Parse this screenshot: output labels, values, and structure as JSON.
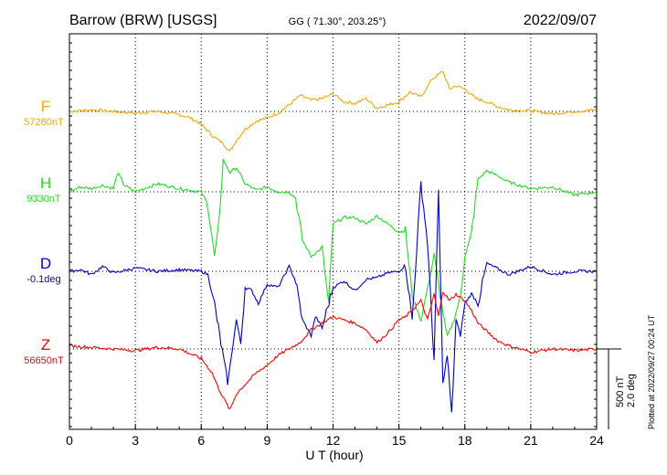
{
  "header": {
    "station": "Barrow (BRW)  [USGS]",
    "coords": "GG ( 71.30°, 203.25°)",
    "date": "2022/09/07"
  },
  "footer": {
    "plotted_note": "Plotted at 2022/09/27 00:24 UT"
  },
  "scale_bar": {
    "label_nt": "500 nT",
    "label_deg": "2.0 deg"
  },
  "chart_data": {
    "type": "line",
    "xlabel": "U T (hour)",
    "xlim": [
      0,
      24
    ],
    "xticks": [
      0,
      3,
      6,
      9,
      12,
      15,
      18,
      21,
      24
    ],
    "xtick_labels": [
      "0",
      "3",
      "6",
      "9",
      "12",
      "15",
      "18",
      "21",
      "24"
    ],
    "grid": true,
    "units_per_division_nT": 500,
    "series": [
      {
        "name": "F",
        "baseline_label": "57260nT",
        "color": "#f5a800",
        "x": [
          0,
          1,
          2,
          3,
          4,
          5,
          5.5,
          6,
          6.5,
          7,
          7.3,
          7.6,
          8,
          8.5,
          9,
          9.5,
          10,
          10.5,
          11,
          11.5,
          12,
          12.5,
          13,
          13.5,
          14,
          14.5,
          15,
          15.5,
          16,
          16.5,
          17,
          17.3,
          17.6,
          18,
          18.5,
          19,
          19.5,
          20,
          21,
          22,
          23,
          24
        ],
        "values": [
          0,
          10,
          0,
          -10,
          0,
          -20,
          -40,
          -80,
          -150,
          -200,
          -250,
          -180,
          -110,
          -60,
          -40,
          -10,
          40,
          100,
          70,
          80,
          110,
          60,
          50,
          80,
          20,
          40,
          60,
          120,
          90,
          200,
          250,
          140,
          160,
          140,
          80,
          60,
          30,
          10,
          5,
          -15,
          0,
          10
        ]
      },
      {
        "name": "H",
        "baseline_label": "9330nT",
        "color": "#22dd22",
        "x": [
          0,
          0.5,
          1,
          1.5,
          2,
          2.2,
          2.5,
          3,
          4,
          5,
          5.5,
          6,
          6.3,
          6.6,
          6.8,
          7,
          7.3,
          7.6,
          8,
          8.5,
          9,
          9.5,
          10,
          10.3,
          10.6,
          11,
          11.5,
          11.8,
          12,
          12.5,
          13,
          13.5,
          14,
          14.5,
          15,
          15.3,
          15.6,
          16,
          16.3,
          16.6,
          17,
          17.2,
          17.5,
          17.8,
          18,
          18.3,
          18.6,
          19,
          19.5,
          20,
          21,
          22,
          23,
          24
        ],
        "values": [
          0,
          30,
          20,
          40,
          20,
          120,
          40,
          0,
          50,
          20,
          10,
          0,
          -80,
          -400,
          -200,
          200,
          120,
          150,
          50,
          10,
          30,
          0,
          0,
          -40,
          -300,
          -400,
          -350,
          -700,
          -200,
          -160,
          -160,
          -200,
          -150,
          -200,
          -250,
          -240,
          -650,
          -800,
          -600,
          -400,
          -750,
          -900,
          -800,
          -650,
          -400,
          -260,
          80,
          130,
          100,
          60,
          20,
          30,
          -20,
          0
        ]
      },
      {
        "name": "D",
        "baseline_label": "-0.1deg",
        "color": "#0000cc",
        "x": [
          0,
          0.5,
          1,
          1.5,
          2,
          3,
          4,
          5,
          6,
          6.3,
          6.6,
          6.9,
          7.2,
          7.4,
          7.6,
          7.8,
          8,
          8.3,
          8.6,
          9,
          9.5,
          10,
          10.3,
          10.6,
          11,
          11.2,
          11.5,
          12,
          12.5,
          13,
          13.5,
          14,
          14.5,
          15,
          15.3,
          15.6,
          16,
          16.3,
          16.6,
          16.8,
          17,
          17.2,
          17.4,
          17.6,
          17.8,
          18,
          18.3,
          18.6,
          19,
          20,
          21,
          22,
          23,
          24
        ],
        "values": [
          0,
          10,
          -20,
          30,
          -10,
          20,
          0,
          10,
          0,
          -20,
          -200,
          -450,
          -700,
          -500,
          -300,
          -450,
          -100,
          -120,
          -200,
          -80,
          -100,
          30,
          -60,
          -300,
          -400,
          -280,
          -350,
          -100,
          -60,
          -120,
          -50,
          -40,
          -10,
          0,
          40,
          -300,
          550,
          180,
          -550,
          500,
          -700,
          -520,
          -900,
          -300,
          -400,
          -200,
          -140,
          -200,
          50,
          -20,
          30,
          -20,
          0,
          0
        ]
      },
      {
        "name": "Z",
        "baseline_label": "56650nT",
        "color": "#ff0000",
        "x": [
          0,
          1,
          2,
          3,
          4,
          5,
          5.5,
          6,
          6.5,
          6.8,
          7,
          7.3,
          7.6,
          8,
          8.5,
          9,
          9.5,
          10,
          10.5,
          11,
          11.5,
          12,
          12.5,
          13,
          13.5,
          14,
          14.5,
          15,
          15.3,
          15.6,
          16,
          16.3,
          16.6,
          16.8,
          17,
          17.3,
          17.6,
          18,
          18.3,
          18.6,
          19,
          19.5,
          20,
          21,
          22,
          23,
          24
        ],
        "values": [
          20,
          10,
          0,
          -10,
          10,
          0,
          -30,
          -60,
          -150,
          -250,
          -300,
          -380,
          -280,
          -220,
          -150,
          -100,
          -40,
          0,
          40,
          120,
          160,
          200,
          180,
          160,
          120,
          40,
          100,
          180,
          200,
          240,
          300,
          180,
          340,
          200,
          360,
          300,
          340,
          300,
          240,
          160,
          110,
          50,
          20,
          -20,
          0,
          -10,
          0
        ]
      }
    ]
  }
}
